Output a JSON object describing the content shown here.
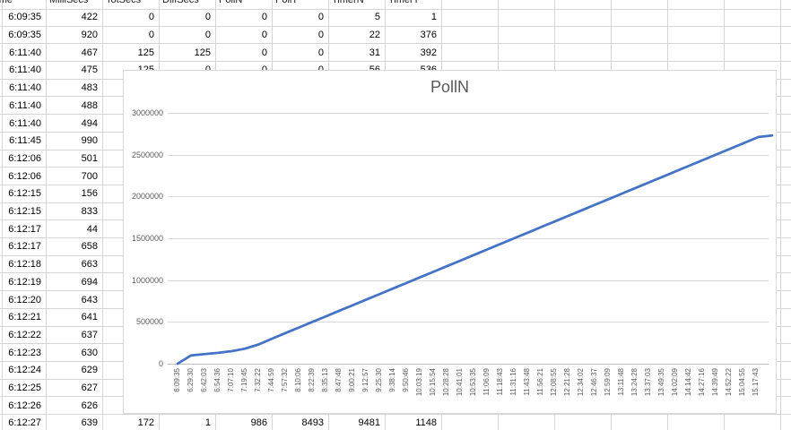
{
  "spreadsheet": {
    "column_headers": [
      "Time",
      "MilliSecs",
      "TotSecs",
      "DiffSecs",
      "PollN",
      "PollT",
      "TimerN",
      "TimerT"
    ],
    "rows": [
      [
        "6:09:35",
        "422",
        "0",
        "0",
        "0",
        "0",
        "5",
        "1"
      ],
      [
        "6:09:35",
        "920",
        "0",
        "0",
        "0",
        "0",
        "22",
        "376"
      ],
      [
        "6:11:40",
        "467",
        "125",
        "125",
        "0",
        "0",
        "31",
        "392"
      ],
      [
        "6:11:40",
        "475",
        "125",
        "0",
        "0",
        "0",
        "56",
        "536"
      ],
      [
        "6:11:40",
        "483",
        "",
        "",
        "",
        "",
        "",
        ""
      ],
      [
        "6:11:40",
        "488",
        "",
        "",
        "",
        "",
        "",
        ""
      ],
      [
        "6:11:40",
        "494",
        "",
        "",
        "",
        "",
        "",
        ""
      ],
      [
        "6:11:45",
        "990",
        "",
        "",
        "",
        "",
        "",
        ""
      ],
      [
        "6:12:06",
        "501",
        "",
        "",
        "",
        "",
        "",
        ""
      ],
      [
        "6:12:06",
        "700",
        "",
        "",
        "",
        "",
        "",
        ""
      ],
      [
        "6:12:15",
        "156",
        "",
        "",
        "",
        "",
        "",
        ""
      ],
      [
        "6:12:15",
        "833",
        "",
        "",
        "",
        "",
        "",
        ""
      ],
      [
        "6:12:17",
        "44",
        "",
        "",
        "",
        "",
        "",
        ""
      ],
      [
        "6:12:17",
        "658",
        "",
        "",
        "",
        "",
        "",
        ""
      ],
      [
        "6:12:18",
        "663",
        "",
        "",
        "",
        "",
        "",
        ""
      ],
      [
        "6:12:19",
        "694",
        "",
        "",
        "",
        "",
        "",
        ""
      ],
      [
        "6:12:20",
        "643",
        "",
        "",
        "",
        "",
        "",
        ""
      ],
      [
        "6:12:21",
        "641",
        "",
        "",
        "",
        "",
        "",
        ""
      ],
      [
        "6:12:22",
        "637",
        "",
        "",
        "",
        "",
        "",
        ""
      ],
      [
        "6:12:23",
        "630",
        "",
        "",
        "",
        "",
        "",
        ""
      ],
      [
        "6:12:24",
        "629",
        "",
        "",
        "",
        "",
        "",
        ""
      ],
      [
        "6:12:25",
        "627",
        "",
        "",
        "",
        "",
        "",
        ""
      ],
      [
        "6:12:26",
        "626",
        "",
        "",
        "",
        "",
        "",
        ""
      ],
      [
        "6:12:27",
        "639",
        "172",
        "1",
        "986",
        "8493",
        "9481",
        "1148"
      ]
    ]
  },
  "chart_data": {
    "type": "line",
    "title": "PollN",
    "xlabel": "",
    "ylabel": "",
    "ylim": [
      0,
      3000000
    ],
    "y_ticks": [
      0,
      500000,
      1000000,
      1500000,
      2000000,
      2500000,
      3000000
    ],
    "y_tick_labels": [
      "0",
      "500000",
      "1000000",
      "1500000",
      "2000000",
      "2500000",
      "3000000"
    ],
    "x_tick_labels": [
      "6:09:35",
      "6:29:30",
      "6:42:03",
      "6:54:36",
      "7:07:10",
      "7:19:45",
      "7:32:22",
      "7:44:59",
      "7:57:32",
      "8:10:06",
      "8:22:39",
      "8:35:13",
      "8:47:48",
      "9:00:21",
      "9:12:57",
      "9:25:30",
      "9:38:14",
      "9:50:46",
      "10:03:19",
      "10:15:54",
      "10:28:28",
      "10:41:01",
      "10:53:35",
      "11:06:09",
      "11:18:43",
      "11:31:16",
      "11:43:48",
      "11:56:21",
      "12:08:55",
      "12:21:28",
      "12:34:02",
      "12:46:37",
      "12:59:09",
      "13:11:48",
      "13:24:28",
      "13:37:03",
      "13:49:35",
      "14:02:09",
      "14:14:42",
      "14:27:16",
      "14:39:49",
      "14:52:22",
      "15:04:55",
      "15:17:43"
    ],
    "grid": true,
    "legend": false,
    "line_color": "#4472c4",
    "series": [
      {
        "name": "PollN",
        "values": [
          0,
          100000,
          115000,
          130000,
          150000,
          180000,
          230000,
          300000,
          367000,
          434000,
          501000,
          568000,
          635000,
          702000,
          769000,
          836000,
          903000,
          970000,
          1037000,
          1104000,
          1171000,
          1238000,
          1305000,
          1372000,
          1439000,
          1506000,
          1573000,
          1640000,
          1707000,
          1774000,
          1841000,
          1908000,
          1975000,
          2042000,
          2109000,
          2176000,
          2243000,
          2310000,
          2377000,
          2444000,
          2511000,
          2578000,
          2645000,
          2712000,
          2730000
        ]
      }
    ]
  },
  "colors": {
    "sheet_gridline": "#d4d4d4",
    "chart_border": "#d9d9d9",
    "chart_gridline": "#d9d9d9",
    "axis_line": "#bfbfbf",
    "axis_label": "#595959",
    "series_line": "#4472c4",
    "cell_text": "#000000"
  }
}
